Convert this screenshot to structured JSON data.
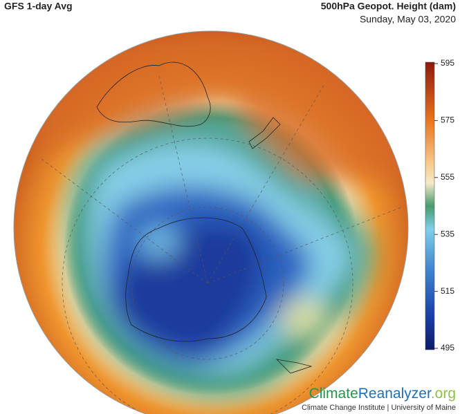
{
  "header": {
    "title": "GFS 1-day Avg",
    "variable": "500hPa Geopot. Height (dam)",
    "date": "Sunday, May 03, 2020"
  },
  "colorbar": {
    "lim": [
      495,
      595
    ],
    "ticks": [
      595,
      575,
      555,
      535,
      515,
      495
    ]
  },
  "branding": {
    "name_parts": [
      "Climate",
      "Reanalyzer",
      ".org"
    ],
    "credit": "Climate Change Institute | University of Maine"
  }
}
